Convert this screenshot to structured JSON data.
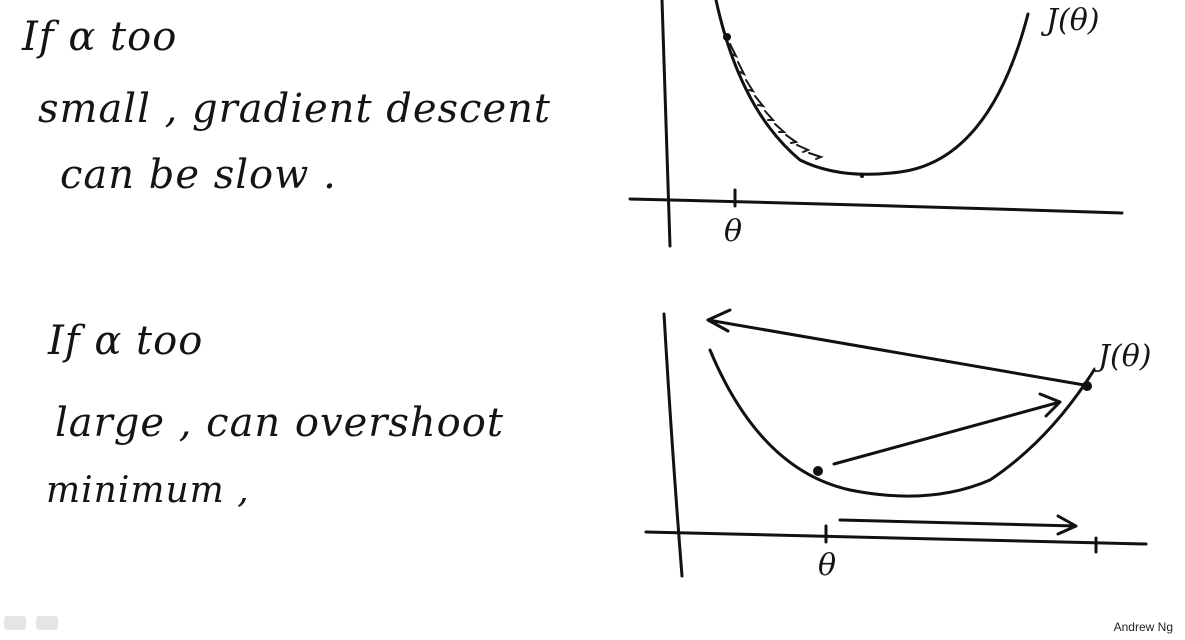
{
  "top_note": {
    "line1": "If α too",
    "line2": "small , gradient descent",
    "line3": "can be slow ."
  },
  "bottom_note": {
    "line1": "If α too",
    "line2": "large , can overshoot",
    "line3": "minimum ,"
  },
  "top_graph": {
    "curve_label": "J(θ)",
    "point_label": "θ"
  },
  "bottom_graph": {
    "curve_label": "J(θ)",
    "point_label": "θ"
  },
  "footer": {
    "credit": "Andrew Ng"
  }
}
